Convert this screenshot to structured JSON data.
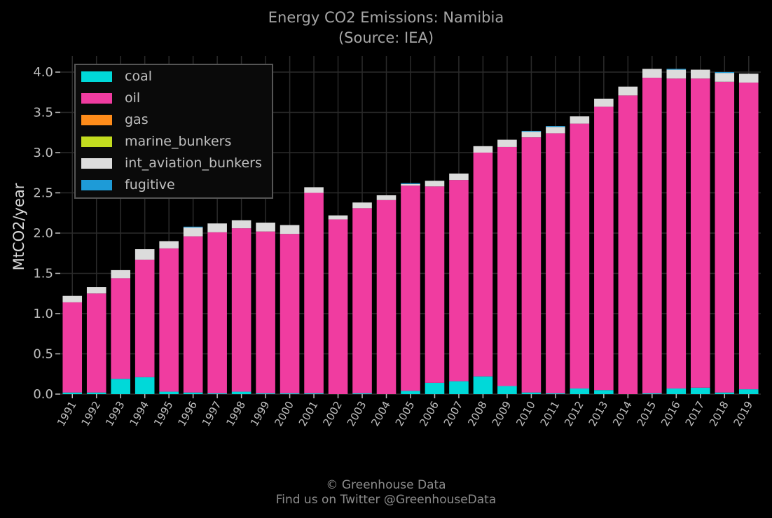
{
  "title": "Energy CO2 Emissions: Namibia",
  "subtitle": "(Source: IEA)",
  "credit_line1": "© Greenhouse Data",
  "credit_line2": "Find us on Twitter @GreenhouseData",
  "chart_data": {
    "type": "bar",
    "stacked": true,
    "title": "Energy CO2 Emissions: Namibia",
    "subtitle": "(Source: IEA)",
    "xlabel": "",
    "ylabel": "MtCO2/year",
    "ylim": [
      0,
      4.2
    ],
    "yticks": [
      "0.0",
      "0.5",
      "1.0",
      "1.5",
      "2.0",
      "2.5",
      "3.0",
      "3.5",
      "4.0"
    ],
    "grid": true,
    "legend_position": "top-left",
    "categories": [
      "1991",
      "1992",
      "1993",
      "1994",
      "1995",
      "1996",
      "1997",
      "1998",
      "1999",
      "2000",
      "2001",
      "2002",
      "2003",
      "2004",
      "2005",
      "2006",
      "2007",
      "2008",
      "2009",
      "2010",
      "2011",
      "2012",
      "2013",
      "2014",
      "2015",
      "2016",
      "2017",
      "2018",
      "2019"
    ],
    "series": [
      {
        "name": "coal",
        "color": "#00d9d9",
        "values": [
          0.02,
          0.02,
          0.19,
          0.21,
          0.03,
          0.02,
          0.01,
          0.03,
          0.01,
          0.01,
          0.01,
          0.0,
          0.01,
          0.0,
          0.04,
          0.14,
          0.16,
          0.22,
          0.1,
          0.02,
          0.01,
          0.07,
          0.05,
          0.0,
          0.01,
          0.07,
          0.08,
          0.02,
          0.06
        ]
      },
      {
        "name": "oil",
        "color": "#f03ca0",
        "values": [
          1.12,
          1.23,
          1.25,
          1.46,
          1.78,
          1.94,
          2.0,
          2.03,
          2.01,
          1.98,
          2.49,
          2.17,
          2.3,
          2.41,
          2.55,
          2.44,
          2.5,
          2.78,
          2.97,
          3.17,
          3.23,
          3.29,
          3.52,
          3.71,
          3.92,
          3.85,
          3.84,
          3.86,
          3.81
        ]
      },
      {
        "name": "gas",
        "color": "#ff8c1a",
        "values": [
          0,
          0,
          0,
          0,
          0,
          0,
          0,
          0,
          0,
          0,
          0,
          0,
          0,
          0,
          0,
          0,
          0,
          0,
          0,
          0,
          0,
          0,
          0,
          0,
          0,
          0,
          0,
          0,
          0
        ]
      },
      {
        "name": "marine_bunkers",
        "color": "#c3dc1f",
        "values": [
          0,
          0,
          0,
          0,
          0,
          0,
          0,
          0,
          0,
          0,
          0,
          0,
          0,
          0,
          0,
          0,
          0,
          0,
          0,
          0,
          0,
          0,
          0,
          0,
          0,
          0,
          0,
          0,
          0
        ]
      },
      {
        "name": "int_aviation_bunkers",
        "color": "#dcdcdc",
        "values": [
          0.08,
          0.08,
          0.1,
          0.13,
          0.09,
          0.11,
          0.11,
          0.1,
          0.11,
          0.11,
          0.07,
          0.05,
          0.07,
          0.06,
          0.02,
          0.07,
          0.08,
          0.08,
          0.09,
          0.07,
          0.08,
          0.09,
          0.1,
          0.11,
          0.11,
          0.11,
          0.11,
          0.11,
          0.11
        ]
      },
      {
        "name": "fugitive",
        "color": "#1e9bd7",
        "values": [
          0,
          0,
          0,
          0,
          0,
          0.01,
          0,
          0,
          0,
          0,
          0,
          0,
          0,
          0,
          0.01,
          0,
          0,
          0,
          0,
          0.01,
          0.01,
          0,
          0,
          0,
          0,
          0.01,
          0,
          0.01,
          0
        ]
      }
    ]
  }
}
